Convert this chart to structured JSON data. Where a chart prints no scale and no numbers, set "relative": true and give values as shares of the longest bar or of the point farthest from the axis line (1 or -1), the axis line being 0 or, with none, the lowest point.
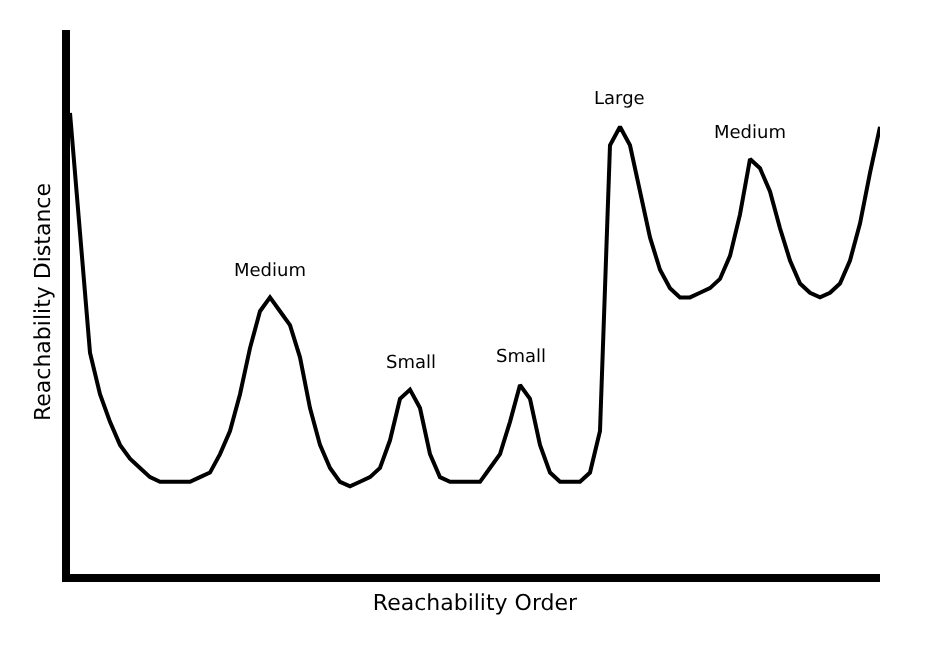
{
  "chart_data": {
    "type": "line",
    "relative": true,
    "xlabel": "Reachability Order",
    "ylabel": "Reachability Distance",
    "categories": [
      null,
      null,
      null,
      null,
      null,
      null,
      null,
      null,
      null,
      null,
      null,
      null,
      null,
      null,
      null,
      null,
      null,
      null,
      null,
      null,
      null,
      null,
      null,
      null,
      null,
      null,
      null,
      null,
      null,
      null,
      null,
      null,
      null,
      null,
      null,
      null,
      null,
      null,
      null,
      null,
      null,
      null,
      null,
      null,
      null,
      null,
      null,
      null,
      null,
      null,
      null,
      null,
      null,
      null,
      null,
      null,
      null,
      null,
      null,
      null,
      null,
      null,
      null,
      null,
      null,
      null,
      null,
      null,
      null,
      null,
      null,
      null,
      null,
      null,
      null,
      null,
      null,
      null,
      null,
      null,
      null,
      null
    ],
    "series": [
      {
        "color": "#000000",
        "values": [
          1.0,
          0.74,
          0.48,
          0.39,
          0.33,
          0.28,
          0.25,
          0.23,
          0.21,
          0.2,
          0.2,
          0.2,
          0.2,
          0.21,
          0.22,
          0.26,
          0.31,
          0.39,
          0.49,
          0.57,
          0.6,
          0.57,
          0.54,
          0.47,
          0.36,
          0.28,
          0.23,
          0.2,
          0.19,
          0.2,
          0.21,
          0.23,
          0.29,
          0.38,
          0.4,
          0.36,
          0.26,
          0.21,
          0.2,
          0.2,
          0.2,
          0.2,
          0.23,
          0.26,
          0.33,
          0.41,
          0.38,
          0.28,
          0.22,
          0.2,
          0.2,
          0.2,
          0.22,
          0.31,
          0.93,
          0.97,
          0.93,
          0.83,
          0.73,
          0.66,
          0.62,
          0.6,
          0.6,
          0.61,
          0.62,
          0.64,
          0.69,
          0.78,
          0.9,
          0.88,
          0.83,
          0.75,
          0.68,
          0.63,
          0.61,
          0.6,
          0.61,
          0.63,
          0.68,
          0.76,
          0.87,
          0.97
        ]
      }
    ],
    "annotations": [
      "Medium",
      "Small",
      "Small",
      "Large",
      "Medium"
    ],
    "marker": "none",
    "line_style": "solid"
  }
}
